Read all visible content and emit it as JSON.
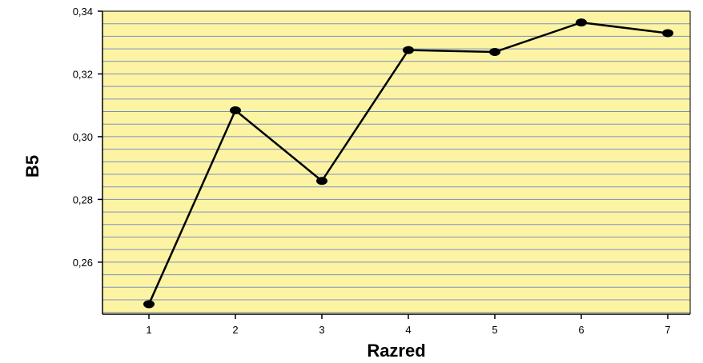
{
  "chart_data": {
    "type": "line",
    "xlabel": "Razred",
    "ylabel": "B5",
    "categories": [
      "1",
      "2",
      "3",
      "4",
      "5",
      "6",
      "7"
    ],
    "series": [
      {
        "values": [
          0.2466,
          0.3084,
          0.2859,
          0.3276,
          0.327,
          0.3364,
          0.333
        ]
      }
    ],
    "ylim": [
      0.2434,
      0.34
    ],
    "y_ticks": [
      "0,26",
      "0,28",
      "0,30",
      "0,32",
      "0,34"
    ],
    "y_tick_values": [
      0.26,
      0.28,
      0.3,
      0.32,
      0.34
    ],
    "grid_step": 0.004,
    "grid": true,
    "colors": {
      "plot_background": "#fcf4a3",
      "grid_line": "#7e8fc0",
      "line": "#000000",
      "axis": "#000000"
    }
  }
}
